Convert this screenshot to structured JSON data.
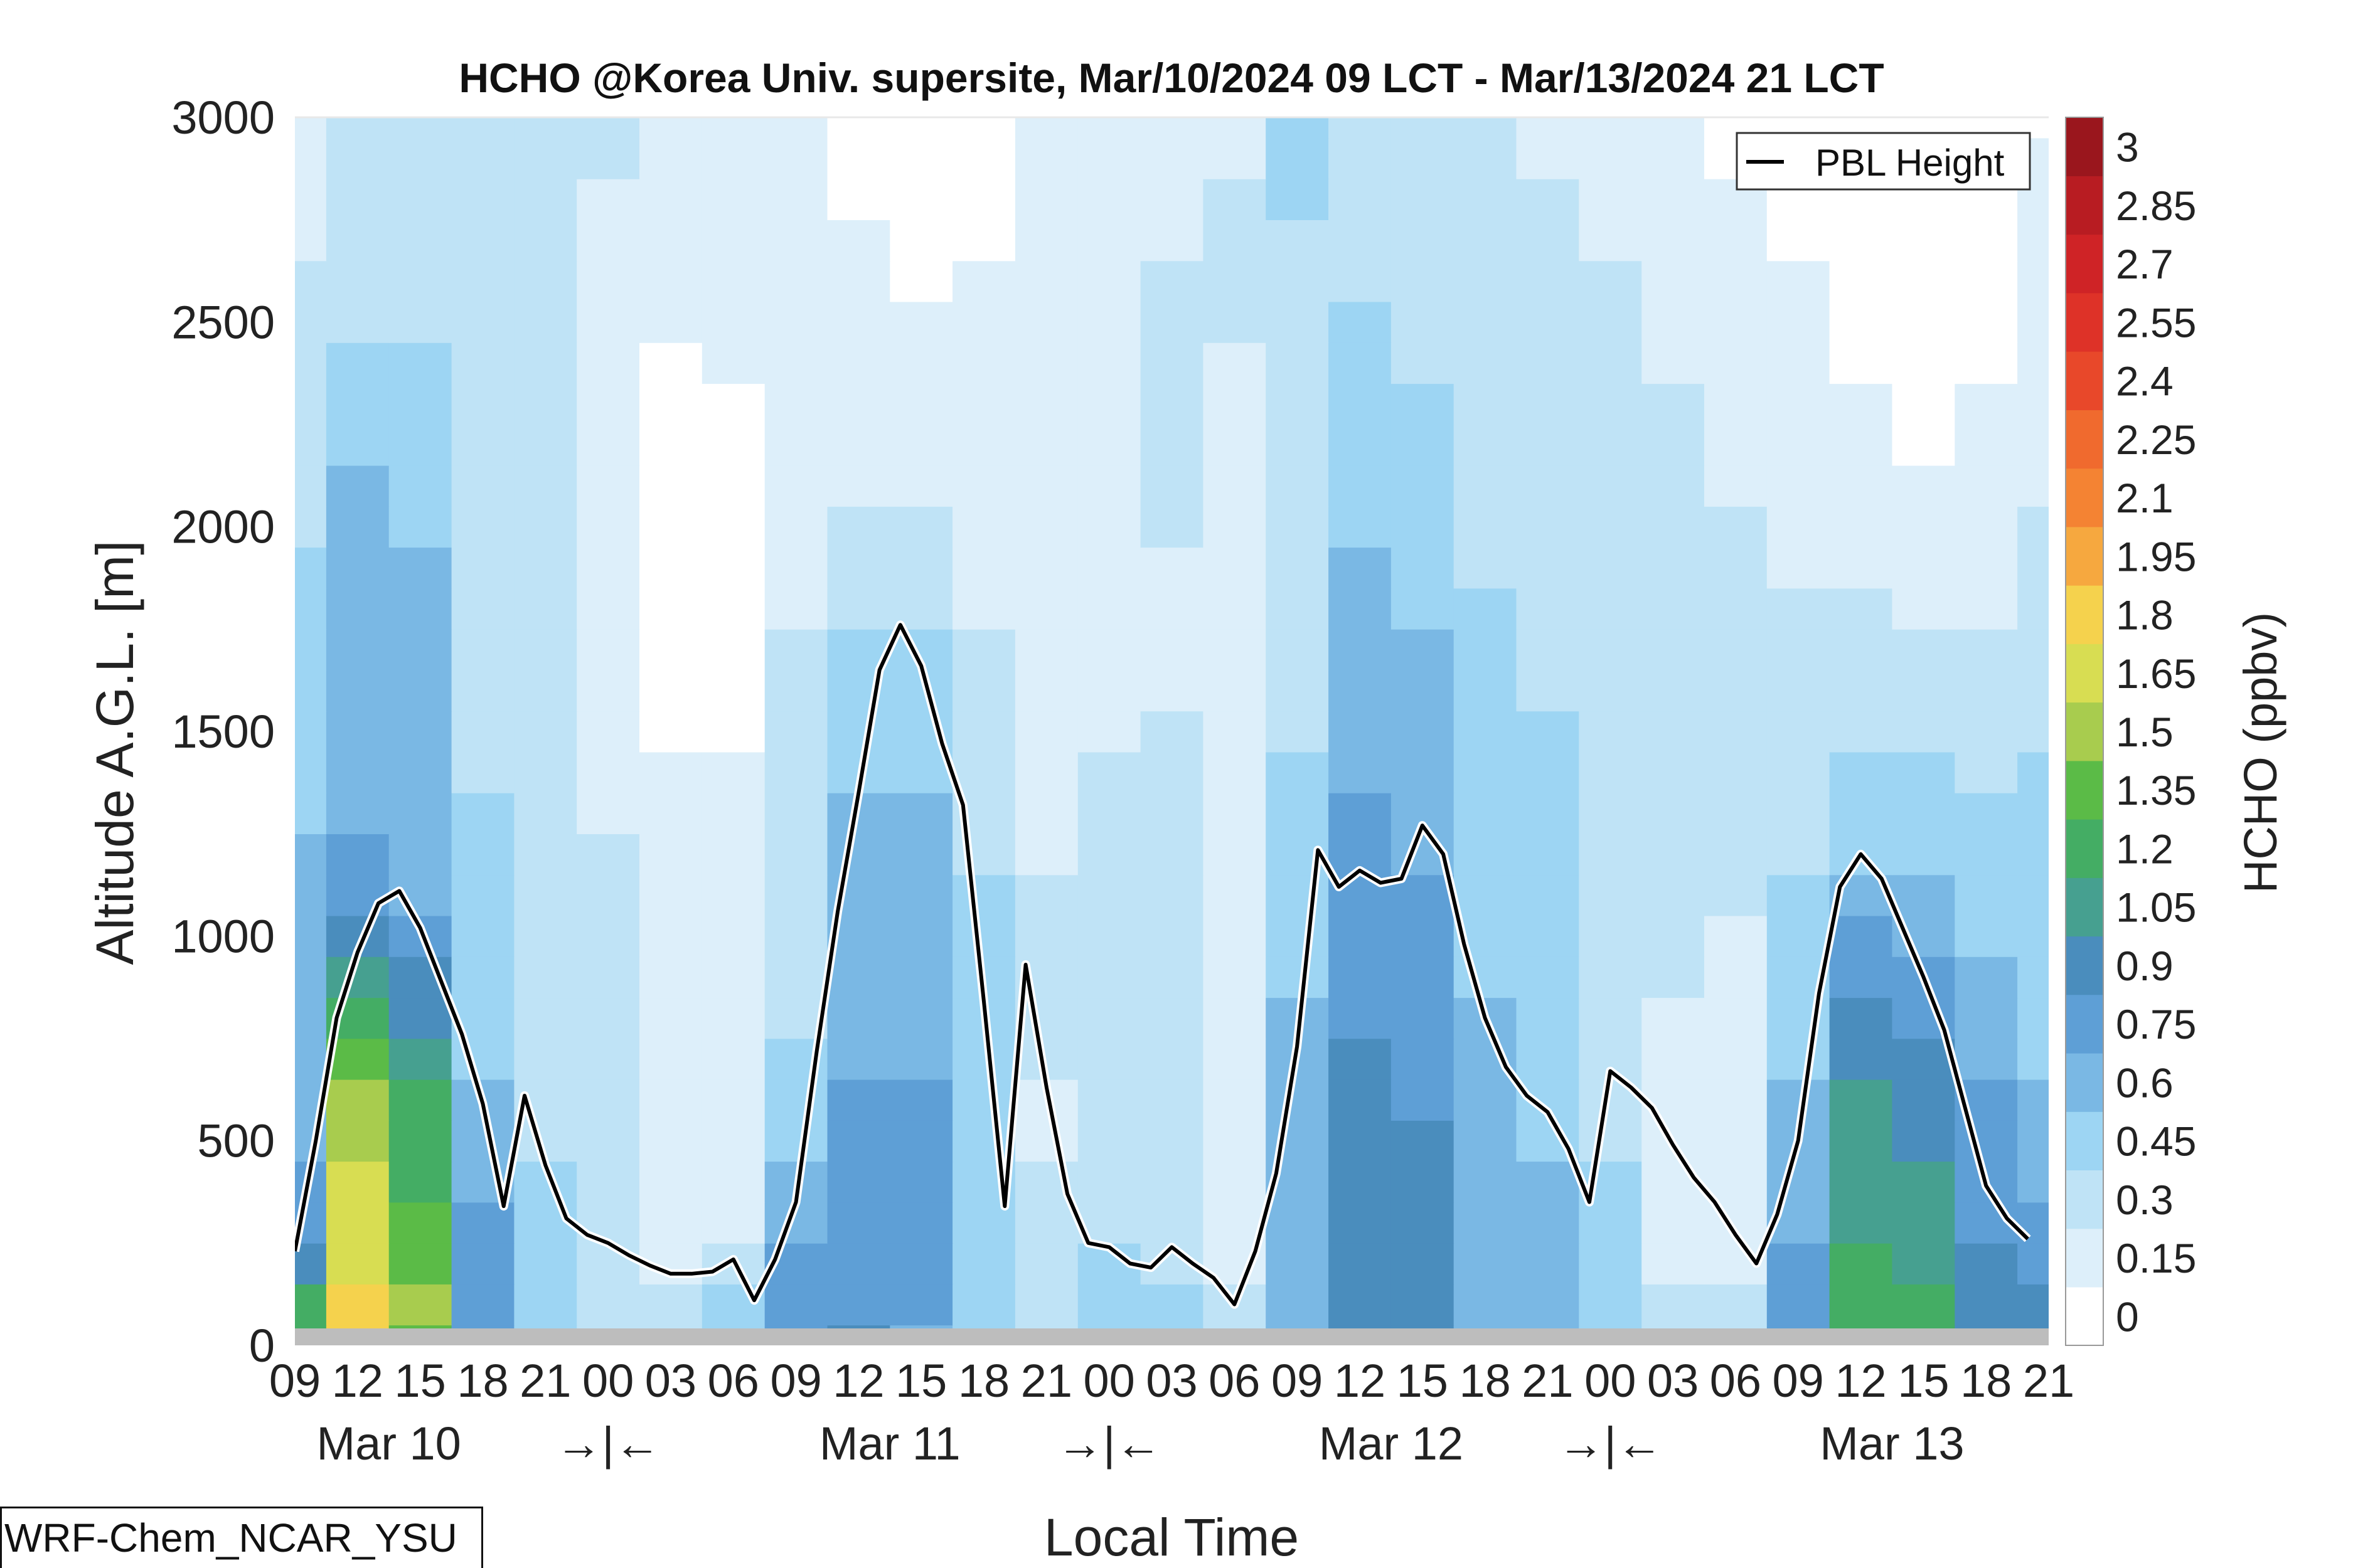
{
  "chart_data": {
    "type": "heatmap",
    "title": "HCHO @Korea Univ. supersite, Mar/10/2024 09 LCT - Mar/13/2024 21 LCT",
    "xlabel": "Local Time",
    "ylabel": "Altitude A.G.L. [m]",
    "ylim": [
      0,
      3000
    ],
    "y_ticks": [
      0,
      500,
      1000,
      1500,
      2000,
      2500,
      3000
    ],
    "x_ticks": [
      "09",
      "12",
      "15",
      "18",
      "21",
      "00",
      "03",
      "06",
      "09",
      "12",
      "15",
      "18",
      "21",
      "00",
      "03",
      "06",
      "09",
      "12",
      "15",
      "18",
      "21",
      "00",
      "03",
      "06",
      "09",
      "12",
      "15",
      "18",
      "21"
    ],
    "x_dates": [
      "Mar 10",
      "Mar 11",
      "Mar 12",
      "Mar 13"
    ],
    "day_break_marker": "→|←",
    "colorbar": {
      "label": "HCHO (ppbv)",
      "ticks": [
        "0",
        "0.15",
        "0.3",
        "0.45",
        "0.6",
        "0.75",
        "0.9",
        "1.05",
        "1.2",
        "1.35",
        "1.5",
        "1.65",
        "1.8",
        "1.95",
        "2.1",
        "2.25",
        "2.4",
        "2.55",
        "2.7",
        "2.85",
        "3"
      ],
      "colors": [
        "#ffffff",
        "#ddeffa",
        "#bfe3f6",
        "#9dd5f3",
        "#7ab8e4",
        "#5e9fd6",
        "#4a8dbd",
        "#46a090",
        "#44ad64",
        "#5bbb47",
        "#a8cc4e",
        "#d8dd52",
        "#f5d24d",
        "#f6a83f",
        "#f48333",
        "#f06a2e",
        "#e8482a",
        "#de3228",
        "#cf2326",
        "#b81c22",
        "#9a161d"
      ]
    },
    "legend": {
      "placement": "top-right",
      "entries": [
        "PBL Height"
      ]
    },
    "series": [
      {
        "name": "PBL Height",
        "x_hours": [
          0,
          1,
          2,
          3,
          4,
          5,
          6,
          7,
          8,
          9,
          10,
          11,
          12,
          13,
          14,
          15,
          16,
          17,
          18,
          19,
          20,
          21,
          22,
          23,
          24,
          25,
          26,
          27,
          28,
          29,
          30,
          31,
          32,
          33,
          34,
          35,
          36,
          37,
          38,
          39,
          40,
          41,
          42,
          43,
          44,
          45,
          46,
          47,
          48,
          49,
          50,
          51,
          52,
          53,
          54,
          55,
          56,
          57,
          58,
          59,
          60,
          61,
          62,
          63,
          64,
          65,
          66,
          67,
          68,
          69,
          70,
          71,
          72,
          73,
          74,
          75,
          76,
          77,
          78,
          79,
          80,
          81,
          82,
          83,
          84
        ],
        "values": [
          230,
          500,
          800,
          960,
          1080,
          1110,
          1020,
          890,
          760,
          590,
          340,
          610,
          440,
          310,
          270,
          250,
          220,
          195,
          175,
          175,
          180,
          210,
          110,
          210,
          350,
          720,
          1060,
          1350,
          1650,
          1760,
          1660,
          1470,
          1320,
          840,
          340,
          930,
          630,
          370,
          250,
          240,
          200,
          190,
          240,
          200,
          165,
          100,
          230,
          420,
          730,
          1210,
          1120,
          1160,
          1130,
          1140,
          1270,
          1200,
          980,
          800,
          680,
          610,
          570,
          480,
          350,
          670,
          630,
          580,
          490,
          410,
          350,
          270,
          200,
          320,
          500,
          860,
          1120,
          1200,
          1140,
          1020,
          900,
          770,
          580,
          390,
          310,
          260
        ]
      }
    ],
    "hcho_grid_ppbv": {
      "x_hours": [
        0,
        3,
        6,
        9,
        12,
        15,
        18,
        21,
        24,
        27,
        30,
        33,
        36,
        39,
        42,
        45,
        48,
        51,
        54,
        57,
        60,
        63,
        66,
        69,
        72,
        75,
        78,
        81,
        84
      ],
      "z_m": [
        0,
        100,
        200,
        300,
        400,
        500,
        600,
        700,
        800,
        900,
        1000,
        1100,
        1200,
        1300,
        1400,
        1500,
        1600,
        1700,
        1800,
        1900,
        2000,
        2100,
        2200,
        2300,
        2400,
        2500,
        2600,
        2700,
        2800,
        2900,
        3000
      ],
      "values": [
        [
          1.3,
          1.9,
          1.4,
          0.8,
          0.55,
          0.4,
          0.4,
          0.55,
          0.8,
          0.9,
          0.7,
          0.5,
          0.4,
          0.55,
          0.5,
          0.35,
          0.6,
          0.95,
          0.9,
          0.7,
          0.6,
          0.5,
          0.3,
          0.3,
          0.75,
          1.3,
          1.2,
          0.95,
          0.95
        ],
        [
          1.2,
          1.8,
          1.5,
          0.8,
          0.55,
          0.35,
          0.3,
          0.45,
          0.8,
          0.85,
          0.75,
          0.5,
          0.4,
          0.5,
          0.45,
          0.3,
          0.6,
          0.95,
          0.9,
          0.7,
          0.6,
          0.5,
          0.3,
          0.3,
          0.75,
          1.25,
          1.2,
          0.95,
          0.9
        ],
        [
          1.0,
          1.75,
          1.45,
          0.8,
          0.55,
          0.3,
          0.22,
          0.3,
          0.75,
          0.85,
          0.75,
          0.5,
          0.35,
          0.45,
          0.42,
          0.25,
          0.6,
          0.95,
          0.9,
          0.7,
          0.6,
          0.5,
          0.25,
          0.25,
          0.75,
          1.2,
          1.15,
          0.9,
          0.8
        ],
        [
          0.85,
          1.7,
          1.4,
          0.75,
          0.5,
          0.3,
          0.2,
          0.25,
          0.7,
          0.8,
          0.75,
          0.5,
          0.32,
          0.42,
          0.4,
          0.25,
          0.6,
          0.9,
          0.9,
          0.7,
          0.6,
          0.5,
          0.25,
          0.25,
          0.72,
          1.15,
          1.1,
          0.85,
          0.75
        ],
        [
          0.75,
          1.65,
          1.3,
          0.7,
          0.45,
          0.3,
          0.2,
          0.22,
          0.6,
          0.8,
          0.75,
          0.5,
          0.3,
          0.4,
          0.4,
          0.25,
          0.6,
          0.9,
          0.9,
          0.7,
          0.6,
          0.45,
          0.25,
          0.25,
          0.7,
          1.15,
          1.05,
          0.85,
          0.7
        ],
        [
          0.7,
          1.6,
          1.25,
          0.65,
          0.4,
          0.3,
          0.18,
          0.2,
          0.55,
          0.75,
          0.75,
          0.5,
          0.28,
          0.4,
          0.4,
          0.25,
          0.6,
          0.9,
          0.9,
          0.68,
          0.58,
          0.42,
          0.25,
          0.25,
          0.65,
          1.1,
          1.0,
          0.8,
          0.65
        ],
        [
          0.65,
          1.55,
          1.2,
          0.6,
          0.4,
          0.3,
          0.18,
          0.2,
          0.5,
          0.75,
          0.75,
          0.48,
          0.28,
          0.38,
          0.4,
          0.25,
          0.6,
          0.9,
          0.88,
          0.65,
          0.55,
          0.42,
          0.25,
          0.25,
          0.6,
          1.05,
          0.95,
          0.75,
          0.6
        ],
        [
          0.6,
          1.45,
          1.1,
          0.55,
          0.4,
          0.3,
          0.18,
          0.2,
          0.45,
          0.7,
          0.72,
          0.45,
          0.3,
          0.38,
          0.4,
          0.25,
          0.6,
          0.9,
          0.85,
          0.62,
          0.52,
          0.4,
          0.25,
          0.25,
          0.55,
          1.0,
          0.9,
          0.7,
          0.55
        ],
        [
          0.6,
          1.3,
          1.0,
          0.5,
          0.4,
          0.3,
          0.2,
          0.2,
          0.42,
          0.68,
          0.7,
          0.45,
          0.3,
          0.38,
          0.4,
          0.25,
          0.6,
          0.88,
          0.82,
          0.6,
          0.5,
          0.4,
          0.28,
          0.25,
          0.52,
          0.95,
          0.85,
          0.65,
          0.55
        ],
        [
          0.6,
          1.15,
          0.9,
          0.5,
          0.4,
          0.3,
          0.2,
          0.2,
          0.4,
          0.65,
          0.7,
          0.45,
          0.3,
          0.38,
          0.4,
          0.25,
          0.55,
          0.85,
          0.8,
          0.58,
          0.5,
          0.4,
          0.3,
          0.25,
          0.5,
          0.85,
          0.8,
          0.6,
          0.55
        ],
        [
          0.6,
          1.0,
          0.8,
          0.48,
          0.4,
          0.3,
          0.2,
          0.2,
          0.4,
          0.62,
          0.68,
          0.45,
          0.3,
          0.38,
          0.4,
          0.25,
          0.55,
          0.82,
          0.78,
          0.55,
          0.5,
          0.4,
          0.3,
          0.28,
          0.45,
          0.75,
          0.72,
          0.55,
          0.55
        ],
        [
          0.6,
          0.85,
          0.7,
          0.45,
          0.4,
          0.3,
          0.2,
          0.2,
          0.4,
          0.6,
          0.65,
          0.45,
          0.3,
          0.38,
          0.4,
          0.25,
          0.52,
          0.8,
          0.75,
          0.55,
          0.5,
          0.42,
          0.3,
          0.3,
          0.45,
          0.65,
          0.62,
          0.5,
          0.52
        ],
        [
          0.6,
          0.75,
          0.65,
          0.45,
          0.4,
          0.3,
          0.2,
          0.2,
          0.4,
          0.6,
          0.62,
          0.42,
          0.28,
          0.35,
          0.38,
          0.25,
          0.5,
          0.78,
          0.72,
          0.55,
          0.5,
          0.42,
          0.3,
          0.3,
          0.42,
          0.55,
          0.55,
          0.48,
          0.5
        ],
        [
          0.58,
          0.7,
          0.62,
          0.45,
          0.38,
          0.28,
          0.18,
          0.18,
          0.4,
          0.6,
          0.6,
          0.4,
          0.25,
          0.32,
          0.35,
          0.22,
          0.48,
          0.75,
          0.7,
          0.52,
          0.48,
          0.42,
          0.3,
          0.3,
          0.4,
          0.5,
          0.5,
          0.45,
          0.48
        ],
        [
          0.55,
          0.68,
          0.6,
          0.42,
          0.35,
          0.25,
          0.15,
          0.15,
          0.38,
          0.58,
          0.58,
          0.38,
          0.22,
          0.3,
          0.32,
          0.2,
          0.45,
          0.72,
          0.68,
          0.5,
          0.46,
          0.42,
          0.32,
          0.3,
          0.38,
          0.45,
          0.45,
          0.42,
          0.45
        ],
        [
          0.55,
          0.68,
          0.6,
          0.42,
          0.32,
          0.22,
          0.12,
          0.12,
          0.35,
          0.55,
          0.55,
          0.35,
          0.2,
          0.28,
          0.3,
          0.2,
          0.42,
          0.7,
          0.65,
          0.5,
          0.45,
          0.42,
          0.32,
          0.3,
          0.36,
          0.42,
          0.4,
          0.38,
          0.42
        ],
        [
          0.52,
          0.7,
          0.62,
          0.42,
          0.3,
          0.2,
          0.12,
          0.12,
          0.32,
          0.5,
          0.5,
          0.32,
          0.2,
          0.25,
          0.28,
          0.2,
          0.4,
          0.68,
          0.62,
          0.48,
          0.42,
          0.42,
          0.35,
          0.32,
          0.35,
          0.4,
          0.35,
          0.32,
          0.4
        ],
        [
          0.5,
          0.72,
          0.62,
          0.42,
          0.3,
          0.2,
          0.12,
          0.12,
          0.3,
          0.45,
          0.45,
          0.3,
          0.2,
          0.25,
          0.28,
          0.2,
          0.4,
          0.65,
          0.6,
          0.46,
          0.4,
          0.4,
          0.35,
          0.32,
          0.32,
          0.35,
          0.3,
          0.3,
          0.38
        ],
        [
          0.48,
          0.72,
          0.62,
          0.42,
          0.3,
          0.2,
          0.1,
          0.1,
          0.28,
          0.4,
          0.4,
          0.28,
          0.18,
          0.22,
          0.28,
          0.2,
          0.4,
          0.62,
          0.58,
          0.45,
          0.38,
          0.38,
          0.35,
          0.32,
          0.3,
          0.3,
          0.25,
          0.28,
          0.35
        ],
        [
          0.45,
          0.7,
          0.6,
          0.42,
          0.3,
          0.2,
          0.1,
          0.1,
          0.25,
          0.35,
          0.35,
          0.25,
          0.18,
          0.2,
          0.28,
          0.2,
          0.4,
          0.6,
          0.55,
          0.42,
          0.36,
          0.36,
          0.35,
          0.3,
          0.28,
          0.25,
          0.2,
          0.25,
          0.32
        ],
        [
          0.42,
          0.65,
          0.58,
          0.42,
          0.3,
          0.2,
          0.1,
          0.1,
          0.22,
          0.3,
          0.3,
          0.22,
          0.18,
          0.2,
          0.3,
          0.22,
          0.4,
          0.58,
          0.52,
          0.4,
          0.35,
          0.35,
          0.35,
          0.3,
          0.25,
          0.22,
          0.18,
          0.22,
          0.3
        ],
        [
          0.4,
          0.6,
          0.55,
          0.4,
          0.3,
          0.2,
          0.1,
          0.1,
          0.2,
          0.28,
          0.28,
          0.22,
          0.18,
          0.2,
          0.3,
          0.22,
          0.38,
          0.55,
          0.5,
          0.4,
          0.35,
          0.35,
          0.33,
          0.28,
          0.22,
          0.2,
          0.15,
          0.2,
          0.28
        ],
        [
          0.38,
          0.55,
          0.52,
          0.4,
          0.3,
          0.2,
          0.1,
          0.12,
          0.2,
          0.25,
          0.25,
          0.2,
          0.18,
          0.2,
          0.32,
          0.25,
          0.38,
          0.52,
          0.48,
          0.38,
          0.35,
          0.35,
          0.32,
          0.26,
          0.2,
          0.18,
          0.12,
          0.18,
          0.28
        ],
        [
          0.36,
          0.5,
          0.5,
          0.4,
          0.3,
          0.2,
          0.12,
          0.14,
          0.2,
          0.22,
          0.22,
          0.2,
          0.18,
          0.2,
          0.32,
          0.25,
          0.38,
          0.5,
          0.45,
          0.36,
          0.35,
          0.35,
          0.3,
          0.25,
          0.2,
          0.15,
          0.1,
          0.15,
          0.26
        ],
        [
          0.35,
          0.45,
          0.45,
          0.38,
          0.3,
          0.22,
          0.14,
          0.16,
          0.2,
          0.2,
          0.2,
          0.2,
          0.18,
          0.2,
          0.32,
          0.28,
          0.4,
          0.48,
          0.42,
          0.35,
          0.34,
          0.34,
          0.28,
          0.25,
          0.2,
          0.12,
          0.1,
          0.12,
          0.25
        ],
        [
          0.32,
          0.4,
          0.42,
          0.36,
          0.3,
          0.22,
          0.15,
          0.18,
          0.2,
          0.18,
          0.18,
          0.18,
          0.18,
          0.2,
          0.32,
          0.3,
          0.4,
          0.45,
          0.4,
          0.34,
          0.34,
          0.32,
          0.28,
          0.22,
          0.18,
          0.1,
          0.1,
          0.12,
          0.22
        ],
        [
          0.3,
          0.35,
          0.4,
          0.35,
          0.3,
          0.25,
          0.16,
          0.18,
          0.2,
          0.16,
          0.12,
          0.16,
          0.18,
          0.2,
          0.3,
          0.3,
          0.4,
          0.42,
          0.38,
          0.32,
          0.34,
          0.3,
          0.25,
          0.2,
          0.15,
          0.1,
          0.1,
          0.12,
          0.2
        ],
        [
          0.28,
          0.32,
          0.35,
          0.32,
          0.3,
          0.25,
          0.18,
          0.2,
          0.2,
          0.15,
          0.1,
          0.14,
          0.18,
          0.2,
          0.28,
          0.3,
          0.42,
          0.4,
          0.36,
          0.3,
          0.32,
          0.28,
          0.22,
          0.18,
          0.12,
          0.1,
          0.1,
          0.12,
          0.18
        ],
        [
          0.26,
          0.3,
          0.32,
          0.3,
          0.3,
          0.28,
          0.18,
          0.2,
          0.2,
          0.14,
          0.08,
          0.12,
          0.18,
          0.2,
          0.25,
          0.3,
          0.45,
          0.38,
          0.35,
          0.3,
          0.3,
          0.26,
          0.2,
          0.15,
          0.1,
          0.1,
          0.1,
          0.1,
          0.16
        ],
        [
          0.25,
          0.3,
          0.3,
          0.3,
          0.32,
          0.3,
          0.18,
          0.2,
          0.2,
          0.12,
          0.06,
          0.12,
          0.18,
          0.2,
          0.22,
          0.28,
          0.45,
          0.36,
          0.34,
          0.3,
          0.28,
          0.25,
          0.2,
          0.12,
          0.1,
          0.1,
          0.08,
          0.1,
          0.15
        ],
        [
          0.25,
          0.3,
          0.3,
          0.3,
          0.32,
          0.3,
          0.18,
          0.2,
          0.2,
          0.12,
          0.06,
          0.12,
          0.18,
          0.2,
          0.22,
          0.28,
          0.45,
          0.36,
          0.34,
          0.3,
          0.28,
          0.25,
          0.2,
          0.12,
          0.1,
          0.08,
          0.06,
          0.08,
          0.14
        ]
      ]
    }
  },
  "footer": {
    "model_label": "WRF-Chem_NCAR_YSU"
  }
}
